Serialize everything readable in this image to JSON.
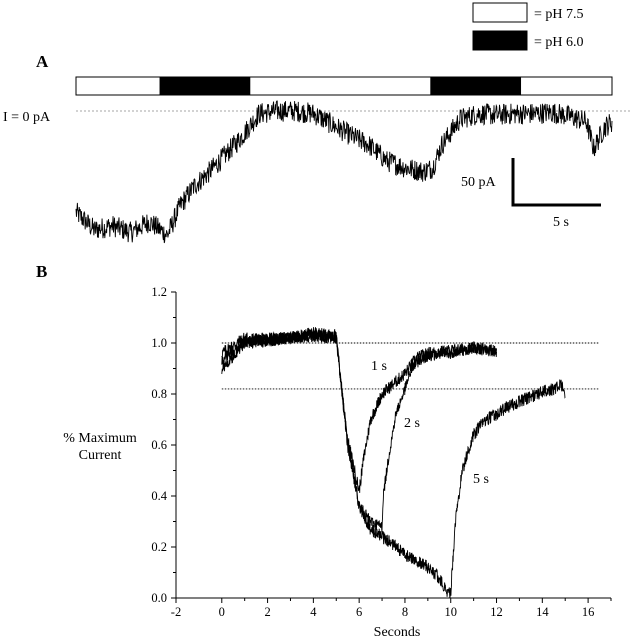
{
  "legend": [
    {
      "label": "= pH 7.5",
      "fill": "#ffffff"
    },
    {
      "label": "= pH 6.0",
      "fill": "#000000"
    }
  ],
  "chart_data": [
    {
      "panel": "A",
      "type": "line",
      "zero_label": "I = 0 pA",
      "stimulus_bar": [
        {
          "ph": "7.5",
          "start_s": 0,
          "end_s": 4.6
        },
        {
          "ph": "6.0",
          "start_s": 4.6,
          "end_s": 9.5
        },
        {
          "ph": "7.5",
          "start_s": 9.5,
          "end_s": 19.4
        },
        {
          "ph": "6.0",
          "start_s": 19.4,
          "end_s": 24.3
        },
        {
          "ph": "7.5",
          "start_s": 24.3,
          "end_s": 29.3
        }
      ],
      "scale_bar": {
        "current_label": "50 pA",
        "current_pA": 50,
        "time_label": "5 s",
        "time_s": 5
      },
      "series": [
        {
          "x": [
            0,
            1,
            2,
            3,
            4,
            5,
            5.7,
            6.5,
            7.3,
            8,
            9,
            10,
            11,
            12,
            13,
            14,
            15,
            16,
            17,
            18,
            19,
            19.5,
            20,
            21,
            22,
            23,
            24,
            25,
            26,
            27,
            27.9,
            28.3,
            28.9,
            29.3
          ],
          "y": [
            -75,
            -88,
            -85,
            -90,
            -82,
            -92,
            -70,
            -55,
            -45,
            -35,
            -20,
            -2,
            0,
            0,
            -2,
            -10,
            -18,
            -25,
            -37,
            -42,
            -45,
            -42,
            -25,
            -6,
            -2,
            -3,
            -2,
            -2,
            -1,
            -4,
            -8,
            -28,
            -12,
            -8
          ]
        }
      ]
    },
    {
      "panel": "B",
      "type": "line",
      "xlabel": "Seconds",
      "ylabel": "% Maximum Current",
      "xlim": [
        -2,
        17
      ],
      "ylim": [
        0.0,
        1.2
      ],
      "xticks": [
        -2,
        0,
        2,
        4,
        6,
        8,
        10,
        12,
        14,
        16
      ],
      "yticks": [
        "0.0",
        "0.2",
        "0.4",
        "0.6",
        "0.8",
        "1.0",
        "1.2"
      ],
      "reference_lines": [
        1.0,
        0.82
      ],
      "annotations": [
        "1 s",
        "2 s",
        "5 s"
      ],
      "series": [
        {
          "name": "1 s",
          "x": [
            0,
            1,
            2,
            3,
            4,
            5,
            5.2,
            5.5,
            6.0,
            6.2,
            6.5,
            7.0,
            7.5,
            8.0,
            8.5,
            9.0,
            10.0,
            11.0,
            12.0
          ],
          "y": [
            0.96,
            1.02,
            1.01,
            1.02,
            1.03,
            1.02,
            0.85,
            0.62,
            0.42,
            0.55,
            0.7,
            0.8,
            0.84,
            0.88,
            0.94,
            0.96,
            0.97,
            0.98,
            0.97
          ]
        },
        {
          "name": "2 s",
          "x": [
            0,
            1,
            2,
            3,
            4,
            5,
            5.2,
            5.5,
            6.0,
            6.5,
            7.0,
            7.05,
            7.3,
            7.6,
            8.0,
            8.3,
            8.6,
            9.0,
            10.0,
            11.0,
            12.0
          ],
          "y": [
            0.93,
            1.0,
            1.02,
            1.02,
            1.03,
            1.02,
            0.85,
            0.6,
            0.36,
            0.3,
            0.28,
            0.4,
            0.56,
            0.72,
            0.82,
            0.9,
            0.93,
            0.95,
            0.96,
            0.98,
            0.97
          ]
        },
        {
          "name": "5 s",
          "x": [
            0,
            1,
            2,
            3,
            4,
            5,
            5.2,
            5.5,
            6.0,
            6.5,
            7.0,
            7.5,
            8.0,
            8.5,
            9.0,
            9.5,
            9.8,
            10.0,
            10.2,
            10.5,
            11.0,
            11.5,
            12.0,
            12.5,
            13.0,
            13.5,
            14.0,
            14.5,
            14.8,
            15.0
          ],
          "y": [
            0.9,
            1.0,
            1.01,
            1.02,
            1.04,
            1.03,
            0.85,
            0.6,
            0.36,
            0.27,
            0.24,
            0.21,
            0.17,
            0.15,
            0.12,
            0.08,
            0.03,
            0.02,
            0.3,
            0.5,
            0.64,
            0.7,
            0.72,
            0.75,
            0.77,
            0.79,
            0.81,
            0.82,
            0.84,
            0.79
          ]
        }
      ]
    }
  ]
}
